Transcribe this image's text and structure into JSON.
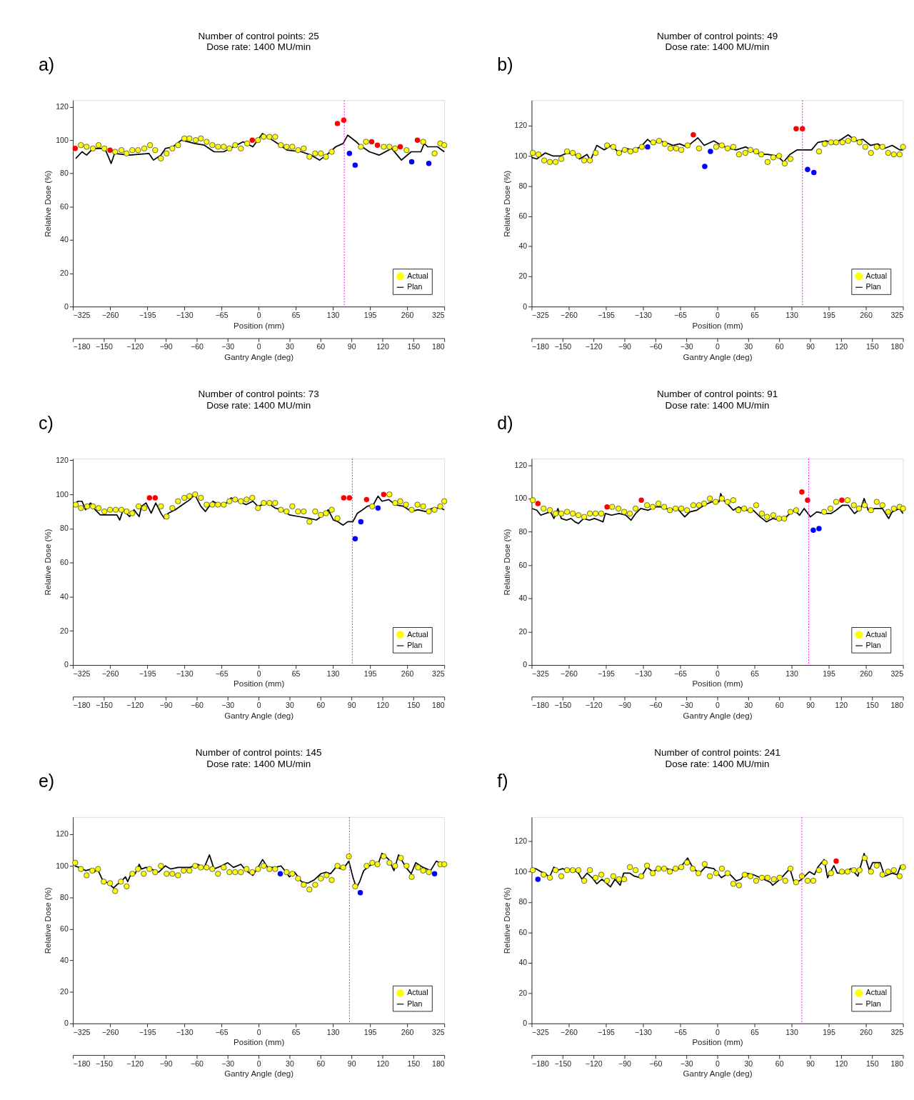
{
  "chart_data": [
    {
      "type": "line",
      "title": "Number of control points: 25",
      "subtitle": "Dose rate: 1400 MU/min",
      "annotations": [
        "a)"
      ],
      "xlabel": "Position (mm)",
      "x2label": "Gantry Angle (deg)",
      "ylabel": "Relative Dose (%)",
      "xlim": [
        -325,
        325
      ],
      "xticks": [
        -325,
        -260,
        -195,
        -130,
        -65,
        0,
        65,
        130,
        195,
        260,
        325
      ],
      "x2lim": [
        -180,
        180
      ],
      "x2ticks": [
        -180,
        -150,
        -120,
        -90,
        -60,
        -30,
        0,
        30,
        60,
        90,
        120,
        150,
        180
      ],
      "ylim": [
        0,
        124
      ],
      "yticks": [
        0,
        20,
        40,
        60,
        80,
        100,
        120
      ],
      "grid": false,
      "legend": "bottom right",
      "ref_lines": [
        {
          "axis": "x",
          "value": 150,
          "color": "#ff00ff",
          "line_style": "dotted"
        }
      ],
      "series": [
        {
          "name": "Actual",
          "type": "scatter",
          "color": "#ffff00",
          "x": [
            -311,
            -301,
            -290,
            -280,
            -270,
            -251,
            -240,
            -231,
            -221,
            -211,
            -200,
            -190,
            -181,
            -171,
            -161,
            -151,
            -141,
            -130,
            -121,
            -110,
            -101,
            -91,
            -81,
            -71,
            -61,
            -51,
            -41,
            -31,
            -20,
            -1,
            9,
            19,
            29,
            39,
            49,
            59,
            69,
            79,
            89,
            99,
            109,
            118,
            128,
            179,
            188,
            219,
            229,
            239,
            259,
            288,
            308,
            318,
            325
          ],
          "values": [
            97,
            96,
            95,
            97,
            95,
            93,
            94,
            92,
            94,
            94,
            95,
            97,
            94,
            89,
            92,
            95,
            97,
            101,
            101,
            100,
            101,
            99,
            97,
            96,
            96,
            95,
            97,
            95,
            98,
            100,
            102,
            102,
            102,
            97,
            96,
            96,
            94,
            95,
            90,
            92,
            92,
            90,
            93,
            96,
            99,
            96,
            96,
            95,
            94,
            99,
            92,
            98,
            97
          ]
        },
        {
          "name": "Plan",
          "type": "line",
          "color": "#000000",
          "x": [
            -320,
            -309,
            -301,
            -290,
            -269,
            -258,
            -252,
            -226,
            -192,
            -184,
            -171,
            -163,
            -150,
            -135,
            -112,
            -95,
            -78,
            -61,
            -44,
            -27,
            -10,
            7,
            20,
            33,
            50,
            75,
            92,
            107,
            122,
            135,
            148,
            156,
            171,
            177,
            194,
            211,
            233,
            250,
            267,
            284,
            290,
            296,
            313,
            325
          ],
          "values": [
            89,
            93,
            91,
            95,
            95,
            86,
            92,
            91,
            92,
            88,
            91,
            95,
            96,
            100,
            98,
            97,
            93,
            93,
            96,
            99,
            96,
            104,
            101,
            98,
            94,
            93,
            91,
            88,
            92,
            96,
            98,
            103,
            99,
            97,
            93,
            91,
            95,
            88,
            93,
            93,
            98,
            96,
            96,
            93
          ]
        },
        {
          "type": "scatter",
          "color": "#ff0000",
          "x": [
            -321,
            -260,
            -11,
            138,
            149,
            198,
            208,
            248,
            278
          ],
          "values": [
            95,
            94,
            100,
            110,
            112,
            99,
            97,
            96,
            100
          ]
        },
        {
          "type": "scatter",
          "color": "#0000ff",
          "x": [
            159,
            169,
            268,
            298
          ],
          "values": [
            92,
            85,
            87,
            86
          ]
        }
      ]
    },
    {
      "type": "line",
      "title": "Number of control points: 49",
      "subtitle": "Dose rate: 1400 MU/min",
      "annotations": [
        "b)"
      ],
      "xlabel": "Position (mm)",
      "x2label": "Gantry Angle (deg)",
      "ylabel": "Relative Dose (%)",
      "xlim": [
        -325,
        325
      ],
      "xticks": [
        -325,
        -260,
        -195,
        -130,
        -65,
        0,
        65,
        130,
        195,
        260,
        325
      ],
      "x2lim": [
        -180,
        180
      ],
      "x2ticks": [
        -180,
        -150,
        -120,
        -90,
        -60,
        -30,
        0,
        30,
        60,
        90,
        120,
        150,
        180
      ],
      "ylim": [
        0,
        137
      ],
      "yticks": [
        0,
        20,
        40,
        60,
        80,
        100,
        120
      ],
      "grid": false,
      "legend": "bottom right",
      "ref_lines": [
        {
          "axis": "x",
          "value": 149,
          "color": "#ff00ff",
          "line_style": "dotted"
        }
      ],
      "series": [
        {
          "name": "Actual",
          "type": "scatter",
          "color": "#ffff00",
          "x": [
            -323,
            -313,
            -303,
            -293,
            -283,
            -273,
            -263,
            -253,
            -243,
            -233,
            -223,
            -213,
            -193,
            -182,
            -172,
            -162,
            -152,
            -143,
            -132,
            -112,
            -102,
            -92,
            -82,
            -72,
            -63,
            -52,
            -32,
            -2,
            8,
            18,
            28,
            38,
            49,
            58,
            68,
            77,
            88,
            98,
            108,
            118,
            128,
            178,
            188,
            199,
            208,
            219,
            229,
            239,
            249,
            259,
            269,
            279,
            289,
            299,
            309,
            319,
            325
          ],
          "values": [
            102,
            101,
            97,
            96,
            96,
            98,
            103,
            102,
            100,
            97,
            97,
            102,
            107,
            106,
            102,
            104,
            103,
            104,
            106,
            109,
            110,
            108,
            105,
            105,
            104,
            107,
            105,
            106,
            107,
            105,
            106,
            101,
            102,
            104,
            103,
            101,
            96,
            99,
            100,
            95,
            98,
            103,
            108,
            109,
            109,
            109,
            110,
            111,
            109,
            106,
            102,
            106,
            106,
            102,
            101,
            101,
            106
          ]
        },
        {
          "name": "Plan",
          "type": "line",
          "color": "#000000",
          "x": [
            -325,
            -316,
            -301,
            -288,
            -275,
            -262,
            -249,
            -241,
            -228,
            -222,
            -211,
            -198,
            -185,
            -172,
            -160,
            -147,
            -134,
            -122,
            -113,
            -102,
            -91,
            -78,
            -66,
            -53,
            -44,
            -34,
            -23,
            -6,
            7,
            20,
            33,
            50,
            63,
            75,
            88,
            105,
            116,
            127,
            140,
            152,
            165,
            176,
            191,
            204,
            217,
            229,
            242,
            255,
            268,
            281,
            293,
            306,
            319,
            325
          ],
          "values": [
            99,
            98,
            102,
            100,
            100,
            102,
            101,
            98,
            101,
            97,
            107,
            104,
            107,
            102,
            105,
            104,
            106,
            111,
            108,
            110,
            109,
            107,
            108,
            106,
            109,
            112,
            107,
            110,
            107,
            105,
            104,
            106,
            103,
            101,
            101,
            100,
            96,
            101,
            104,
            104,
            104,
            109,
            110,
            108,
            111,
            114,
            110,
            111,
            107,
            108,
            105,
            107,
            104,
            104
          ]
        },
        {
          "type": "scatter",
          "color": "#ff0000",
          "x": [
            -42,
            138,
            149
          ],
          "values": [
            114,
            118,
            118
          ]
        },
        {
          "type": "scatter",
          "color": "#0000ff",
          "x": [
            -122,
            -22,
            -12,
            158,
            169
          ],
          "values": [
            106,
            93,
            103,
            91,
            89
          ]
        }
      ]
    },
    {
      "type": "line",
      "title": "Number of control points: 73",
      "subtitle": "Dose rate: 1400 MU/min",
      "annotations": [
        "c)"
      ],
      "xlabel": "Position (mm)",
      "x2label": "Gantry Angle (deg)",
      "ylabel": "Relative Dose (%)",
      "xlim": [
        -325,
        325
      ],
      "xticks": [
        -325,
        -260,
        -195,
        -130,
        -65,
        0,
        65,
        130,
        195,
        260,
        325
      ],
      "x2lim": [
        -180,
        180
      ],
      "x2ticks": [
        -180,
        -150,
        -120,
        -90,
        -60,
        -30,
        0,
        30,
        60,
        90,
        120,
        150,
        180
      ],
      "ylim": [
        0,
        121
      ],
      "yticks": [
        0,
        20,
        40,
        60,
        80,
        100,
        120
      ],
      "grid": false,
      "legend": "bottom right",
      "ref_lines": [
        {
          "axis": "x",
          "value": 164,
          "color": "#ff00ff",
          "line_style": "dotted"
        }
      ],
      "series": [
        {
          "name": "Actual",
          "type": "scatter",
          "color": "#ffff00",
          "x": [
            -320,
            -311,
            -300,
            -290,
            -280,
            -270,
            -260,
            -250,
            -240,
            -231,
            -221,
            -210,
            -200,
            -171,
            -161,
            -151,
            -141,
            -130,
            -121,
            -111,
            -101,
            -91,
            -81,
            -71,
            -61,
            -51,
            -41,
            -31,
            -21,
            -11,
            -1,
            9,
            19,
            29,
            39,
            49,
            59,
            69,
            79,
            89,
            99,
            109,
            118,
            128,
            138,
            199,
            229,
            239,
            248,
            258,
            268,
            278,
            288,
            298,
            308,
            318,
            325
          ],
          "values": [
            94,
            92,
            93,
            93,
            92,
            90,
            91,
            91,
            91,
            90,
            89,
            93,
            92,
            93,
            87,
            92,
            96,
            98,
            99,
            100,
            98,
            94,
            94,
            94,
            94,
            96,
            97,
            96,
            97,
            98,
            92,
            95,
            95,
            95,
            91,
            90,
            93,
            90,
            90,
            84,
            90,
            88,
            89,
            91,
            86,
            93,
            100,
            95,
            96,
            94,
            91,
            94,
            93,
            90,
            91,
            93,
            96
          ]
        },
        {
          "name": "Plan",
          "type": "line",
          "color": "#000000",
          "x": [
            -323,
            -316,
            -309,
            -303,
            -294,
            -286,
            -277,
            -269,
            -256,
            -248,
            -243,
            -237,
            -226,
            -218,
            -209,
            -205,
            -197,
            -188,
            -180,
            -171,
            -165,
            -158,
            -146,
            -133,
            -120,
            -112,
            -101,
            -93,
            -80,
            -69,
            -56,
            -48,
            -35,
            -22,
            -10,
            -1,
            16,
            29,
            41,
            54,
            71,
            88,
            101,
            114,
            122,
            131,
            139,
            148,
            156,
            165,
            173,
            182,
            190,
            201,
            209,
            216,
            228,
            239,
            254,
            267,
            279,
            292,
            305,
            318,
            325
          ],
          "values": [
            94,
            96,
            96,
            91,
            95,
            91,
            88,
            88,
            88,
            88,
            85,
            91,
            87,
            91,
            87,
            93,
            95,
            89,
            95,
            89,
            86,
            89,
            91,
            94,
            97,
            100,
            93,
            90,
            96,
            94,
            95,
            98,
            96,
            94,
            96,
            93,
            95,
            92,
            91,
            88,
            87,
            86,
            85,
            88,
            91,
            85,
            84,
            82,
            84,
            84,
            89,
            91,
            93,
            94,
            99,
            96,
            97,
            94,
            93,
            90,
            91,
            90,
            92,
            92,
            91
          ]
        },
        {
          "type": "scatter",
          "color": "#ff0000",
          "x": [
            -191,
            -181,
            149,
            159,
            189,
            219
          ],
          "values": [
            98,
            98,
            98,
            98,
            97,
            100
          ]
        },
        {
          "type": "scatter",
          "color": "#0000ff",
          "x": [
            169,
            179,
            209
          ],
          "values": [
            74,
            84,
            92
          ]
        }
      ]
    },
    {
      "type": "line",
      "title": "Number of control points: 91",
      "subtitle": "Dose rate: 1400 MU/min",
      "annotations": [
        "d)"
      ],
      "xlabel": "Position (mm)",
      "x2label": "Gantry Angle (deg)",
      "ylabel": "Relative Dose (%)",
      "xlim": [
        -325,
        325
      ],
      "xticks": [
        -325,
        -260,
        -195,
        -130,
        -65,
        0,
        65,
        130,
        195,
        260,
        325
      ],
      "x2lim": [
        -180,
        180
      ],
      "x2ticks": [
        -180,
        -150,
        -120,
        -90,
        -60,
        -30,
        0,
        30,
        60,
        90,
        120,
        150,
        180
      ],
      "ylim": [
        0,
        124
      ],
      "yticks": [
        0,
        20,
        40,
        60,
        80,
        100,
        120
      ],
      "grid": false,
      "legend": "bottom right",
      "ref_lines": [
        {
          "axis": "x",
          "value": 160,
          "color": "#ff00ff",
          "line_style": "dotted"
        }
      ],
      "series": [
        {
          "name": "Actual",
          "type": "scatter",
          "color": "#ffff00",
          "x": [
            -323,
            -304,
            -293,
            -283,
            -273,
            -263,
            -253,
            -243,
            -233,
            -223,
            -213,
            -203,
            -184,
            -173,
            -163,
            -153,
            -143,
            -123,
            -113,
            -103,
            -93,
            -83,
            -73,
            -63,
            -53,
            -42,
            -32,
            -23,
            -13,
            -3,
            8,
            18,
            28,
            37,
            47,
            58,
            68,
            78,
            87,
            98,
            108,
            117,
            128,
            138,
            187,
            198,
            208,
            228,
            239,
            248,
            258,
            269,
            279,
            289,
            299,
            309,
            319,
            325
          ],
          "values": [
            99,
            94,
            93,
            91,
            91,
            92,
            91,
            90,
            89,
            91,
            91,
            91,
            95,
            94,
            92,
            91,
            94,
            96,
            95,
            97,
            95,
            93,
            94,
            94,
            93,
            96,
            96,
            97,
            100,
            98,
            100,
            98,
            99,
            93,
            94,
            93,
            96,
            91,
            89,
            90,
            88,
            88,
            92,
            93,
            92,
            94,
            98,
            99,
            96,
            94,
            96,
            93,
            98,
            96,
            92,
            94,
            95,
            94
          ]
        },
        {
          "name": "Plan",
          "type": "line",
          "color": "#000000",
          "x": [
            -324,
            -316,
            -309,
            -301,
            -292,
            -286,
            -279,
            -273,
            -264,
            -256,
            -249,
            -243,
            -234,
            -224,
            -215,
            -207,
            -200,
            -196,
            -185,
            -172,
            -160,
            -151,
            -143,
            -134,
            -121,
            -108,
            -95,
            -83,
            -70,
            -57,
            -48,
            -36,
            -23,
            -10,
            3,
            6,
            11,
            20,
            28,
            37,
            50,
            63,
            75,
            86,
            97,
            110,
            118,
            127,
            135,
            144,
            152,
            163,
            174,
            187,
            199,
            208,
            219,
            229,
            240,
            251,
            257,
            264,
            276,
            289,
            300,
            306,
            319,
            325
          ],
          "values": [
            94,
            93,
            90,
            91,
            92,
            88,
            94,
            88,
            87,
            88,
            86,
            85,
            88,
            87,
            88,
            87,
            86,
            91,
            90,
            91,
            90,
            87,
            91,
            94,
            93,
            95,
            95,
            93,
            94,
            89,
            92,
            93,
            96,
            98,
            98,
            103,
            99,
            96,
            93,
            95,
            93,
            93,
            89,
            86,
            88,
            87,
            88,
            91,
            93,
            90,
            94,
            89,
            92,
            91,
            91,
            93,
            96,
            96,
            91,
            94,
            100,
            93,
            94,
            94,
            88,
            92,
            94,
            91
          ]
        },
        {
          "type": "scatter",
          "color": "#ff0000",
          "x": [
            -314,
            -193,
            -133,
            148,
            158,
            218
          ],
          "values": [
            97,
            95,
            99,
            104,
            99,
            99
          ]
        },
        {
          "type": "scatter",
          "color": "#0000ff",
          "x": [
            168,
            178
          ],
          "values": [
            81,
            82
          ]
        }
      ]
    },
    {
      "type": "line",
      "title": "Number of control points: 145",
      "subtitle": "Dose rate: 1400 MU/min",
      "annotations": [
        "e)"
      ],
      "xlabel": "Position (mm)",
      "x2label": "Gantry Angle (deg)",
      "ylabel": "Relative Dose (%)",
      "xlim": [
        -325,
        325
      ],
      "xticks": [
        -325,
        -260,
        -195,
        -130,
        -65,
        0,
        65,
        130,
        195,
        260,
        325
      ],
      "x2lim": [
        -180,
        180
      ],
      "x2ticks": [
        -180,
        -150,
        -120,
        -90,
        -60,
        -30,
        0,
        30,
        60,
        90,
        120,
        150,
        180
      ],
      "ylim": [
        0,
        131
      ],
      "yticks": [
        0,
        20,
        40,
        60,
        80,
        100,
        120
      ],
      "grid": false,
      "legend": "bottom right",
      "ref_lines": [
        {
          "axis": "x",
          "value": 159,
          "color": "#ff00ff",
          "line_style": "dotted"
        }
      ],
      "series": [
        {
          "name": "Actual",
          "type": "scatter",
          "color": "#ffff00",
          "x": [
            -321,
            -311,
            -301,
            -291,
            -281,
            -271,
            -260,
            -251,
            -241,
            -231,
            -221,
            -211,
            -201,
            -191,
            -181,
            -171,
            -161,
            -151,
            -141,
            -131,
            -121,
            -111,
            -101,
            -91,
            -81,
            -71,
            -61,
            -51,
            -41,
            -31,
            -21,
            -11,
            -1,
            9,
            19,
            29,
            49,
            59,
            69,
            79,
            89,
            99,
            109,
            119,
            128,
            138,
            148,
            158,
            169,
            189,
            199,
            208,
            219,
            229,
            239,
            249,
            259,
            268,
            279,
            288,
            298,
            318,
            325
          ],
          "values": [
            102,
            98,
            94,
            97,
            98,
            90,
            89,
            84,
            90,
            87,
            95,
            98,
            95,
            98,
            96,
            100,
            95,
            95,
            94,
            97,
            97,
            100,
            99,
            99,
            98,
            95,
            99,
            96,
            96,
            96,
            98,
            96,
            98,
            100,
            98,
            98,
            96,
            95,
            92,
            88,
            85,
            88,
            92,
            94,
            91,
            100,
            99,
            106,
            87,
            100,
            102,
            101,
            106,
            102,
            100,
            105,
            100,
            93,
            99,
            97,
            96,
            101,
            101
          ]
        },
        {
          "name": "Plan",
          "type": "line",
          "color": "#000000",
          "x": [
            -322,
            -314,
            -303,
            -292,
            -288,
            -282,
            -273,
            -263,
            -254,
            -248,
            -241,
            -233,
            -229,
            -222,
            -216,
            -209,
            -205,
            -197,
            -188,
            -175,
            -163,
            -154,
            -141,
            -131,
            -120,
            -107,
            -95,
            -86,
            -78,
            -65,
            -54,
            -44,
            -31,
            -22,
            -10,
            -1,
            7,
            16,
            29,
            39,
            46,
            54,
            63,
            75,
            86,
            97,
            109,
            118,
            126,
            135,
            148,
            158,
            165,
            171,
            177,
            184,
            194,
            203,
            209,
            216,
            228,
            237,
            245,
            258,
            267,
            275,
            288,
            301,
            311,
            322,
            325
          ],
          "values": [
            100,
            99,
            97,
            98,
            96,
            98,
            91,
            89,
            86,
            88,
            90,
            93,
            90,
            96,
            95,
            101,
            98,
            99,
            98,
            96,
            100,
            98,
            99,
            99,
            99,
            101,
            99,
            107,
            98,
            100,
            102,
            99,
            101,
            97,
            94,
            99,
            104,
            99,
            99,
            100,
            97,
            93,
            96,
            90,
            89,
            91,
            95,
            96,
            95,
            99,
            98,
            103,
            93,
            86,
            90,
            97,
            100,
            102,
            101,
            108,
            104,
            97,
            107,
            99,
            95,
            102,
            99,
            97,
            103,
            101,
            100
          ]
        },
        {
          "type": "scatter",
          "color": "#0000ff",
          "x": [
            38,
            178,
            308
          ],
          "values": [
            95,
            83,
            95
          ]
        }
      ]
    },
    {
      "type": "line",
      "title": "Number of control points: 241",
      "subtitle": "Dose rate: 1400 MU/min",
      "annotations": [
        "f)"
      ],
      "xlabel": "Position (mm)",
      "x2label": "Gantry Angle (deg)",
      "ylabel": "Relative Dose (%)",
      "xlim": [
        -325,
        325
      ],
      "xticks": [
        -325,
        -260,
        -195,
        -130,
        -65,
        0,
        65,
        130,
        195,
        260,
        325
      ],
      "x2lim": [
        -180,
        180
      ],
      "x2ticks": [
        -180,
        -150,
        -120,
        -90,
        -60,
        -30,
        0,
        30,
        60,
        90,
        120,
        150,
        180
      ],
      "ylim": [
        0,
        136
      ],
      "yticks": [
        0,
        20,
        40,
        60,
        80,
        100,
        120
      ],
      "grid": false,
      "legend": "bottom right",
      "ref_lines": [
        {
          "axis": "x",
          "value": 148,
          "color": "#ff00ff",
          "line_style": "dotted"
        }
      ],
      "series": [
        {
          "name": "Actual",
          "type": "scatter",
          "color": "#ffff00",
          "x": [
            -323,
            -304,
            -293,
            -283,
            -273,
            -263,
            -253,
            -243,
            -233,
            -223,
            -213,
            -203,
            -193,
            -182,
            -172,
            -163,
            -153,
            -143,
            -133,
            -123,
            -113,
            -103,
            -93,
            -83,
            -73,
            -63,
            -53,
            -43,
            -33,
            -22,
            -13,
            -2,
            8,
            18,
            28,
            38,
            48,
            58,
            68,
            78,
            88,
            99,
            109,
            119,
            128,
            138,
            148,
            158,
            168,
            178,
            188,
            199,
            218,
            228,
            239,
            249,
            258,
            269,
            279,
            289,
            299,
            309,
            319,
            325
          ],
          "values": [
            101,
            98,
            96,
            101,
            97,
            101,
            101,
            101,
            94,
            101,
            96,
            98,
            94,
            97,
            95,
            95,
            103,
            101,
            97,
            104,
            99,
            102,
            102,
            100,
            102,
            103,
            106,
            102,
            99,
            105,
            97,
            99,
            102,
            99,
            92,
            91,
            98,
            97,
            94,
            96,
            96,
            95,
            96,
            94,
            102,
            93,
            97,
            94,
            94,
            101,
            106,
            99,
            100,
            100,
            101,
            101,
            109,
            100,
            104,
            98,
            100,
            101,
            97,
            103
          ]
        },
        {
          "name": "Plan",
          "type": "line",
          "color": "#000000",
          "x": [
            -324,
            -318,
            -309,
            -301,
            -294,
            -286,
            -279,
            -271,
            -262,
            -254,
            -243,
            -237,
            -228,
            -219,
            -211,
            -202,
            -187,
            -179,
            -170,
            -164,
            -153,
            -145,
            -134,
            -123,
            -113,
            -102,
            -89,
            -78,
            -66,
            -52,
            -42,
            -31,
            -21,
            -6,
            7,
            20,
            33,
            41,
            50,
            63,
            75,
            93,
            97,
            110,
            127,
            135,
            148,
            161,
            170,
            176,
            187,
            193,
            204,
            210,
            221,
            234,
            246,
            257,
            266,
            272,
            285,
            293,
            306,
            315,
            321,
            325
          ],
          "values": [
            102,
            102,
            100,
            99,
            96,
            103,
            101,
            102,
            101,
            102,
            99,
            95,
            99,
            96,
            92,
            95,
            90,
            95,
            91,
            99,
            99,
            97,
            96,
            103,
            100,
            102,
            102,
            101,
            102,
            109,
            102,
            99,
            103,
            102,
            96,
            99,
            94,
            95,
            99,
            98,
            96,
            93,
            91,
            95,
            102,
            92,
            95,
            100,
            98,
            103,
            108,
            96,
            104,
            99,
            99,
            102,
            97,
            112,
            101,
            106,
            106,
            97,
            99,
            98,
            104,
            102
          ]
        },
        {
          "type": "scatter",
          "color": "#ff0000",
          "x": [
            208
          ],
          "values": [
            107
          ]
        },
        {
          "type": "scatter",
          "color": "#0000ff",
          "x": [
            -314
          ],
          "values": [
            95
          ]
        }
      ]
    }
  ]
}
